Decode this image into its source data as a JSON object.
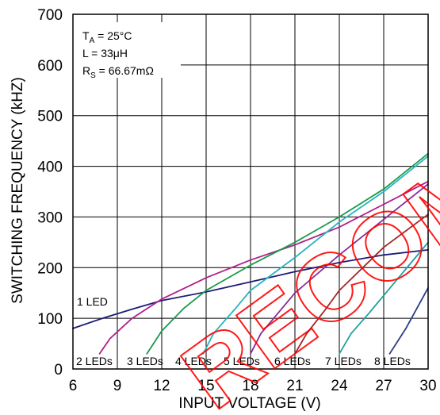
{
  "chart_data": {
    "type": "line",
    "xlabel": "INPUT VOLTAGE (V)",
    "ylabel": "SWITCHING FREQUENCY (kHZ)",
    "xlim": [
      6,
      30
    ],
    "ylim": [
      0,
      700
    ],
    "xticks": [
      6,
      9,
      12,
      15,
      18,
      21,
      24,
      27,
      30
    ],
    "yticks": [
      0,
      100,
      200,
      300,
      400,
      500,
      600,
      700
    ],
    "grid": true,
    "conditions": [
      {
        "main": "T",
        "sub": "A",
        "rest": " = 25°C"
      },
      {
        "main": "L = 33μH",
        "sub": "",
        "rest": ""
      },
      {
        "main": "R",
        "sub": "S",
        "rest": " = 66.67mΩ"
      }
    ],
    "series": [
      {
        "name": "1 LED",
        "color": "#1c1c7a",
        "points": [
          [
            6,
            80
          ],
          [
            8,
            100
          ],
          [
            10,
            118
          ],
          [
            12,
            135
          ],
          [
            15,
            152
          ],
          [
            18,
            172
          ],
          [
            21,
            192
          ],
          [
            24,
            210
          ],
          [
            27,
            225
          ],
          [
            30,
            235
          ]
        ]
      },
      {
        "name": "2 LEDs",
        "color": "#b0208a",
        "points": [
          [
            7.8,
            30
          ],
          [
            8.5,
            60
          ],
          [
            10,
            100
          ],
          [
            12,
            138
          ],
          [
            15,
            180
          ],
          [
            18,
            215
          ],
          [
            21,
            245
          ],
          [
            24,
            280
          ],
          [
            27,
            325
          ],
          [
            30,
            370
          ]
        ]
      },
      {
        "name": "3 LEDs",
        "color": "#1a9a4a",
        "points": [
          [
            11,
            30
          ],
          [
            12,
            75
          ],
          [
            13.5,
            120
          ],
          [
            15,
            155
          ],
          [
            18,
            205
          ],
          [
            21,
            250
          ],
          [
            24,
            300
          ],
          [
            27,
            355
          ],
          [
            30,
            425
          ]
        ]
      },
      {
        "name": "4 LEDs",
        "color": "#2ab3bf",
        "points": [
          [
            14.8,
            30
          ],
          [
            15.5,
            70
          ],
          [
            17,
            120
          ],
          [
            18,
            155
          ],
          [
            21,
            220
          ],
          [
            24,
            290
          ],
          [
            27,
            350
          ],
          [
            30,
            420
          ]
        ]
      },
      {
        "name": "5 LEDs",
        "color": "#8a2a9a",
        "points": [
          [
            18,
            30
          ],
          [
            18.7,
            70
          ],
          [
            20,
            115
          ],
          [
            21,
            150
          ],
          [
            24,
            225
          ],
          [
            27,
            295
          ],
          [
            30,
            365
          ]
        ]
      },
      {
        "name": "6 LEDs",
        "color": "#a52626",
        "points": [
          [
            21,
            30
          ],
          [
            21.8,
            70
          ],
          [
            23,
            115
          ],
          [
            24,
            155
          ],
          [
            27,
            240
          ],
          [
            30,
            305
          ]
        ]
      },
      {
        "name": "7 LEDs",
        "color": "#20a0a0",
        "points": [
          [
            24,
            30
          ],
          [
            24.8,
            70
          ],
          [
            26,
            110
          ],
          [
            27,
            145
          ],
          [
            30,
            250
          ]
        ]
      },
      {
        "name": "8 LEDs",
        "color": "#2a3a8a",
        "points": [
          [
            27.4,
            30
          ],
          [
            28.5,
            80
          ],
          [
            30,
            160
          ]
        ]
      }
    ],
    "annotations": {
      "bottom_row": [
        "2 LEDs",
        "3 LEDs",
        "4 LEDs",
        "5 LEDs",
        "6 LEDs",
        "7 LEDs",
        "8 LEDs"
      ],
      "single": "1 LED"
    }
  },
  "watermark": {
    "text": "RECOMMENDED",
    "color": "#ff0000"
  }
}
